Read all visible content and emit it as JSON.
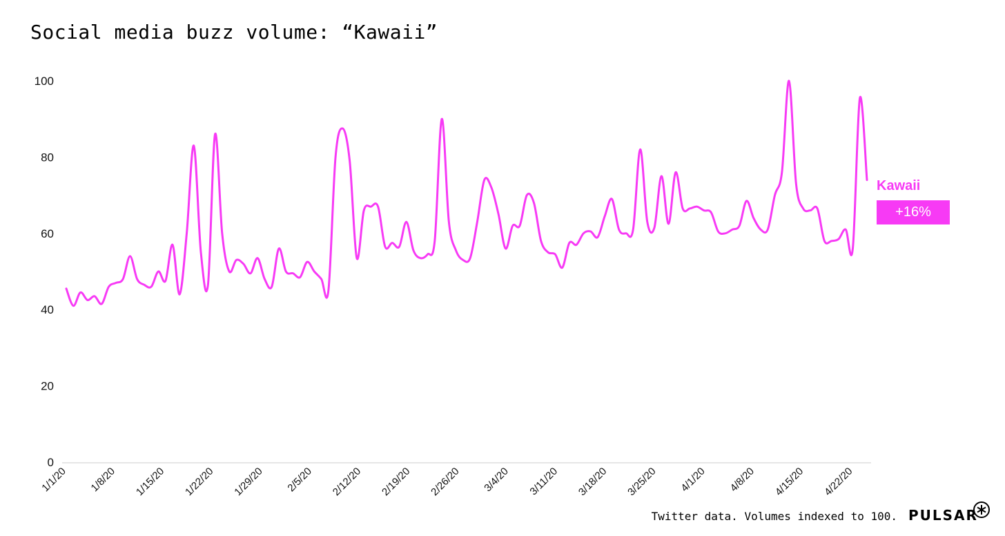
{
  "title": "Social media buzz volume: “Kawaii”",
  "footer": "Twitter data. Volumes indexed to 100.",
  "brand": "PULSAR",
  "logo_icon": "asterisk-circle-icon",
  "series_label": "Kawaii",
  "change_badge": "+16%",
  "colors": {
    "series": "#f73af5",
    "axis": "#cccccc",
    "text": "#111111"
  },
  "chart_data": {
    "type": "line",
    "title": "Social media buzz volume: “Kawaii”",
    "xlabel": "",
    "ylabel": "",
    "ylim": [
      0,
      100
    ],
    "yticks": [
      0,
      20,
      40,
      60,
      80,
      100
    ],
    "xticks": [
      "1/1/20",
      "1/8/20",
      "1/15/20",
      "1/22/20",
      "1/29/20",
      "2/5/20",
      "2/12/20",
      "2/19/20",
      "2/26/20",
      "3/4/20",
      "3/11/20",
      "3/18/20",
      "3/25/20",
      "4/1/20",
      "4/8/20",
      "4/15/20",
      "4/22/20"
    ],
    "x_start": "1/1/20",
    "x_end": "4/24/20",
    "grid": false,
    "legend": "right",
    "series": [
      {
        "name": "Kawaii",
        "change": "+16%",
        "values": [
          45.5,
          41,
          44.5,
          42.5,
          43.5,
          41.5,
          46,
          47,
          48,
          54,
          48,
          46.5,
          46,
          50,
          47.5,
          57,
          44,
          60,
          83,
          55,
          46.5,
          86,
          60,
          50,
          53,
          52,
          49.5,
          53.5,
          48,
          46,
          56,
          50,
          49.5,
          48.5,
          52.5,
          50,
          48,
          45,
          80,
          87.5,
          79,
          53.5,
          66,
          67,
          67,
          56.5,
          57.5,
          56.5,
          63,
          55.5,
          53.5,
          54.5,
          58,
          90,
          63,
          55.5,
          53,
          53.5,
          63,
          74,
          72,
          65,
          56,
          62,
          62,
          70,
          68,
          58,
          55,
          54.5,
          51,
          57.5,
          57,
          60,
          60.5,
          59,
          64.5,
          69,
          61,
          60,
          61,
          82,
          63,
          61.5,
          75,
          62.5,
          76,
          66.5,
          66.5,
          67,
          66,
          65.5,
          60.5,
          60,
          61,
          62,
          68.5,
          64,
          61,
          61,
          70,
          76,
          100,
          73,
          66.5,
          66,
          66.5,
          58,
          58,
          58.5,
          61,
          56,
          95.5,
          74
        ]
      }
    ]
  }
}
